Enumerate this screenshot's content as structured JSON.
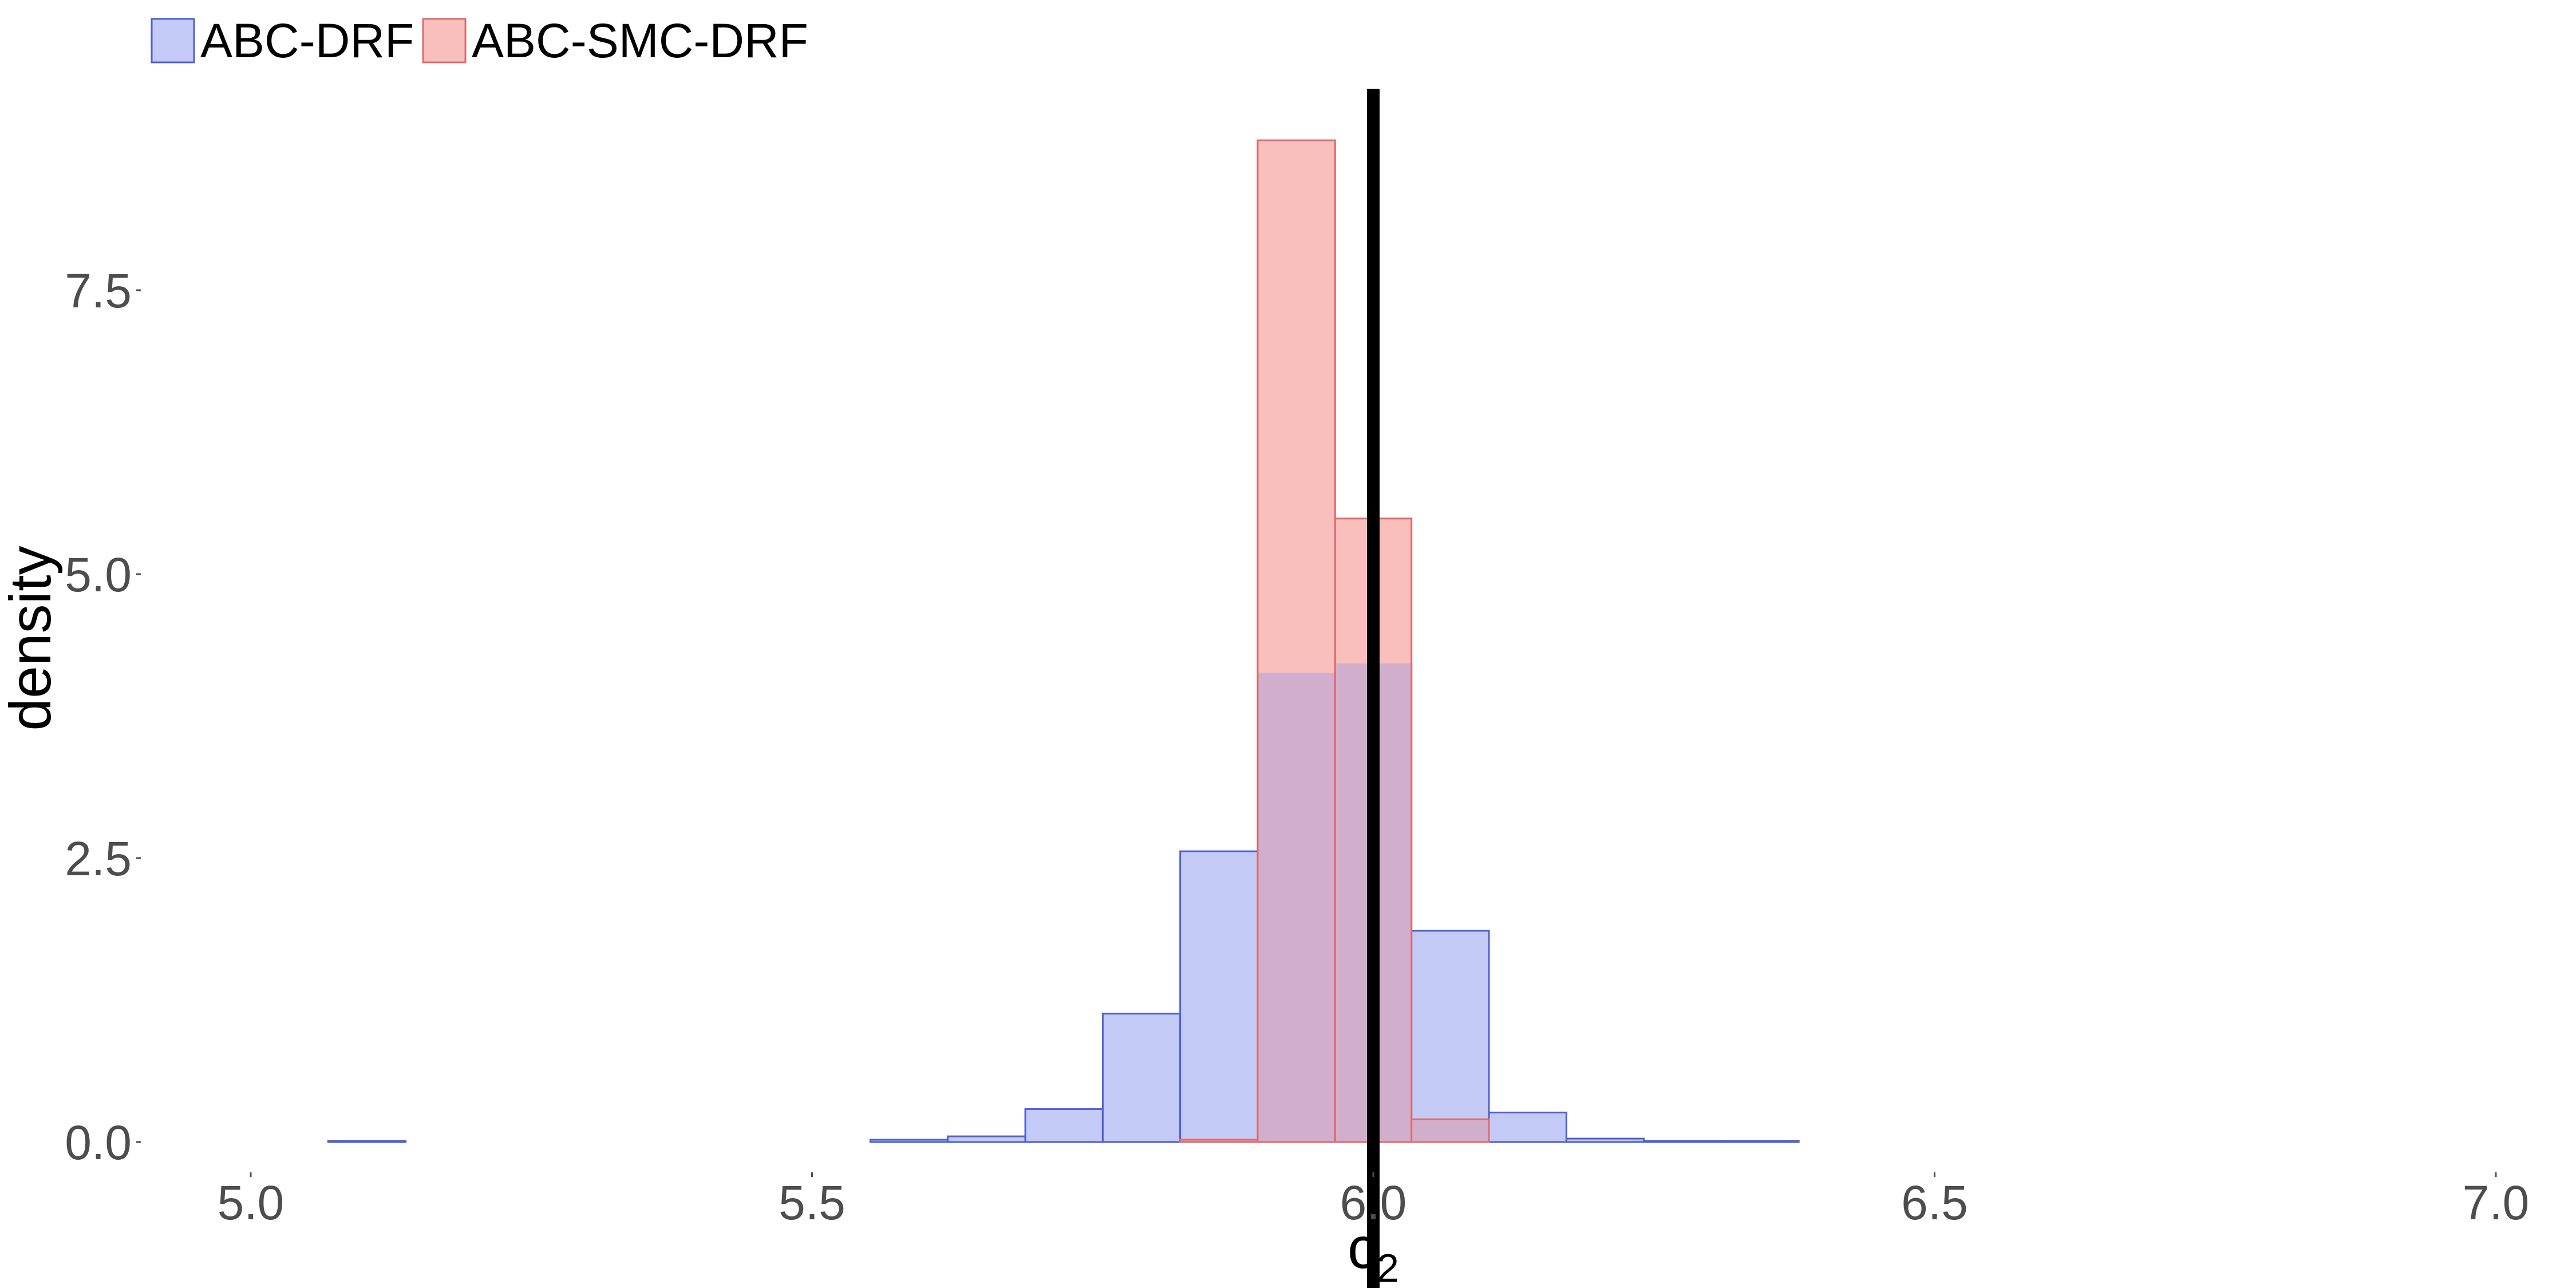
{
  "chart_data": {
    "type": "bar",
    "subtype": "overlapping-histogram",
    "xlabel": "c",
    "xlabel_subscript": "2",
    "ylabel": "density",
    "xlim": [
      5.0,
      7.0
    ],
    "ylim": [
      0.0,
      9.25
    ],
    "x_ticks": [
      5.0,
      5.5,
      6.0,
      6.5,
      7.0
    ],
    "x_tick_labels": [
      "5.0",
      "5.5",
      "6.0",
      "6.5",
      "7.0"
    ],
    "y_ticks": [
      0.0,
      2.5,
      5.0,
      7.5
    ],
    "y_tick_labels": [
      "0.0",
      "2.5",
      "5.0",
      "7.5"
    ],
    "grid": false,
    "legend_position": "top-left",
    "bin_edges": [
      5.0,
      5.069,
      5.138,
      5.207,
      5.276,
      5.345,
      5.414,
      5.483,
      5.552,
      5.621,
      5.69,
      5.759,
      5.828,
      5.897,
      5.966,
      6.034,
      6.103,
      6.172,
      6.241,
      6.31,
      6.379,
      6.448,
      6.517,
      6.586,
      6.655,
      6.724,
      6.793,
      6.862,
      6.931,
      7.0
    ],
    "series": [
      {
        "name": "ABC-DRF",
        "fill": "#c2caf5",
        "stroke": "#4f5fd1",
        "values": [
          0.0,
          0.01,
          0.0,
          0.0,
          0.0,
          0.0,
          0.0,
          0.0,
          0.02,
          0.05,
          0.29,
          1.13,
          2.56,
          4.13,
          4.21,
          1.86,
          0.26,
          0.03,
          0.01,
          0.01,
          0.0,
          0.0,
          0.0,
          0.0,
          0.0,
          0.0,
          0.0,
          0.0,
          0.0
        ]
      },
      {
        "name": "ABC-SMC-DRF",
        "fill": "#f8bfbc",
        "stroke": "#e06a6a",
        "values": [
          0.0,
          0.0,
          0.0,
          0.0,
          0.0,
          0.0,
          0.0,
          0.0,
          0.0,
          0.0,
          0.0,
          0.0,
          0.02,
          8.82,
          5.49,
          0.2,
          0.0,
          0.0,
          0.0,
          0.0,
          0.0,
          0.0,
          0.0,
          0.0,
          0.0,
          0.0,
          0.0,
          0.0,
          0.0
        ]
      }
    ],
    "overlap_fill": "#d1afcc",
    "reference_line": {
      "x": 6.0,
      "color": "#000000"
    }
  }
}
